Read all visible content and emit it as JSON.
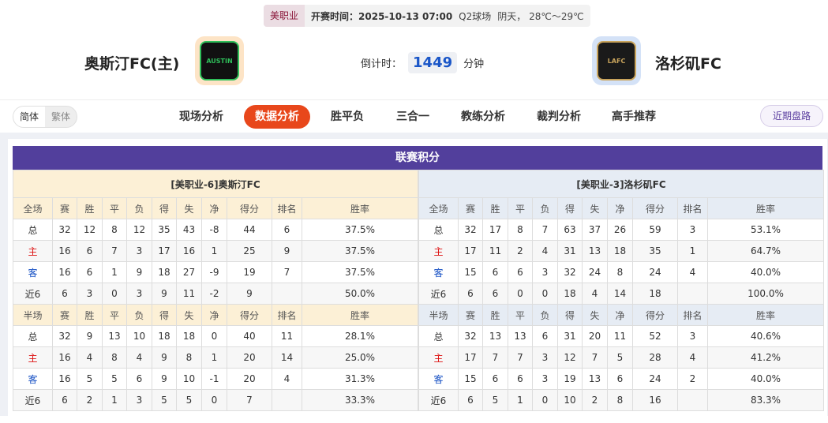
{
  "header": {
    "league": "美职业",
    "kickoff_label": "开赛时间：",
    "kickoff": "2025-10-13 07:00",
    "venue": "Q2球场",
    "weather": "阴天， 28℃～29℃",
    "home_team": "奥斯汀FC(主)",
    "away_team": "洛杉矶FC",
    "countdown_label": "倒计时：",
    "countdown": "1449",
    "countdown_unit": "分钟",
    "home_logo_text": "AUSTIN",
    "away_logo_text": "LAFC"
  },
  "nav": {
    "lang": [
      "简体",
      "繁体"
    ],
    "tabs": [
      "现场分析",
      "数据分析",
      "胜平负",
      "三合一",
      "教练分析",
      "裁判分析",
      "高手推荐"
    ],
    "active_tab": "数据分析",
    "recent": "近期盘路"
  },
  "colors": {
    "accent": "#e8471b",
    "title_bar": "#523f9c",
    "home_bg": "#fcf0d6",
    "away_bg": "#e6ecf4"
  },
  "standings": {
    "title": "联赛积分",
    "columns": [
      "赛",
      "胜",
      "平",
      "负",
      "得",
      "失",
      "净",
      "得分",
      "排名",
      "胜率"
    ],
    "home": {
      "name": "[美职业-6]奥斯汀FC",
      "full": {
        "label": "全场",
        "rows": [
          [
            "总",
            "32",
            "12",
            "8",
            "12",
            "35",
            "43",
            "-8",
            "44",
            "6",
            "37.5%"
          ],
          [
            "主",
            "16",
            "6",
            "7",
            "3",
            "17",
            "16",
            "1",
            "25",
            "9",
            "37.5%"
          ],
          [
            "客",
            "16",
            "6",
            "1",
            "9",
            "18",
            "27",
            "-9",
            "19",
            "7",
            "37.5%"
          ],
          [
            "近6",
            "6",
            "3",
            "0",
            "3",
            "9",
            "11",
            "-2",
            "9",
            "",
            "50.0%"
          ]
        ]
      },
      "half": {
        "label": "半场",
        "rows": [
          [
            "总",
            "32",
            "9",
            "13",
            "10",
            "18",
            "18",
            "0",
            "40",
            "11",
            "28.1%"
          ],
          [
            "主",
            "16",
            "4",
            "8",
            "4",
            "9",
            "8",
            "1",
            "20",
            "14",
            "25.0%"
          ],
          [
            "客",
            "16",
            "5",
            "5",
            "6",
            "9",
            "10",
            "-1",
            "20",
            "4",
            "31.3%"
          ],
          [
            "近6",
            "6",
            "2",
            "1",
            "3",
            "5",
            "5",
            "0",
            "7",
            "",
            "33.3%"
          ]
        ]
      }
    },
    "away": {
      "name": "[美职业-3]洛杉矶FC",
      "full": {
        "label": "全场",
        "rows": [
          [
            "总",
            "32",
            "17",
            "8",
            "7",
            "63",
            "37",
            "26",
            "59",
            "3",
            "53.1%"
          ],
          [
            "主",
            "17",
            "11",
            "2",
            "4",
            "31",
            "13",
            "18",
            "35",
            "1",
            "64.7%"
          ],
          [
            "客",
            "15",
            "6",
            "6",
            "3",
            "32",
            "24",
            "8",
            "24",
            "4",
            "40.0%"
          ],
          [
            "近6",
            "6",
            "6",
            "0",
            "0",
            "18",
            "4",
            "14",
            "18",
            "",
            "100.0%"
          ]
        ]
      },
      "half": {
        "label": "半场",
        "rows": [
          [
            "总",
            "32",
            "13",
            "13",
            "6",
            "31",
            "20",
            "11",
            "52",
            "3",
            "40.6%"
          ],
          [
            "主",
            "17",
            "7",
            "7",
            "3",
            "12",
            "7",
            "5",
            "28",
            "4",
            "41.2%"
          ],
          [
            "客",
            "15",
            "6",
            "6",
            "3",
            "19",
            "13",
            "6",
            "24",
            "2",
            "40.0%"
          ],
          [
            "近6",
            "6",
            "5",
            "1",
            "0",
            "10",
            "2",
            "8",
            "16",
            "",
            "83.3%"
          ]
        ]
      }
    }
  }
}
